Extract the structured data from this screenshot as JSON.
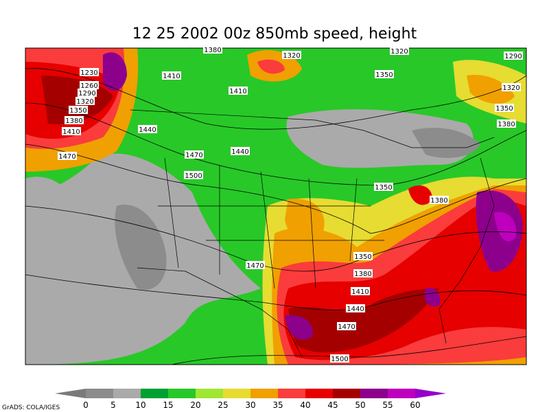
{
  "title": "12 25 2002 00z 850mb speed, height",
  "contour_labels": [
    1380,
    1320,
    1320,
    1290,
    1230,
    1410,
    1350,
    1410,
    1260,
    1290,
    1320,
    1320,
    1350,
    1350,
    1380,
    1380,
    1410,
    1440,
    1470,
    1470,
    1440,
    1500,
    1350,
    1380,
    1470,
    1350,
    1380,
    1410,
    1440,
    1470,
    1500
  ],
  "colorbar": {
    "colors": [
      "#7a7a7a",
      "#8c8c8c",
      "#aaaaaa",
      "#00a032",
      "#28c828",
      "#a0e632",
      "#e6dc32",
      "#f0a000",
      "#fa3c3c",
      "#e60000",
      "#a50000",
      "#8c008c",
      "#be00be",
      "#e600e6",
      "#9600c8"
    ],
    "labels": [
      0,
      5,
      10,
      15,
      20,
      25,
      30,
      35,
      40,
      45,
      50,
      55,
      60
    ]
  },
  "credit": "GrADS: COLA/IGES"
}
